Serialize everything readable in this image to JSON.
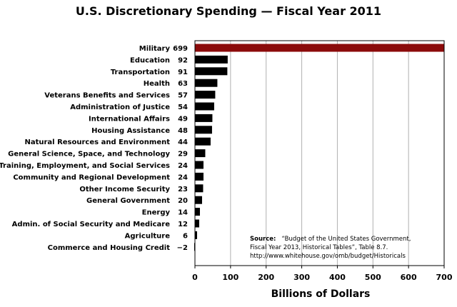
{
  "chart_data": {
    "type": "bar",
    "orientation": "horizontal",
    "title": "U.S. Discretionary Spending — Fiscal Year 2011",
    "xlabel": "Billions of Dollars",
    "ylabel": "",
    "xlim": [
      0,
      700
    ],
    "x_ticks": [
      "0",
      "100",
      "200",
      "300",
      "400",
      "500",
      "600",
      "700"
    ],
    "grid": "vertical gridlines",
    "categories": [
      "Military",
      "Education",
      "Transportation",
      "Health",
      "Veterans Benefits and Services",
      "Administration of Justice",
      "International Affairs",
      "Housing Assistance",
      "Natural Resources and Environment",
      "General Science, Space, and Technology",
      "Training, Employment, and Social Services",
      "Community and Regional Development",
      "Other Income Security",
      "General Government",
      "Energy",
      "Admin. of Social Security and Medicare",
      "Agriculture",
      "Commerce and Housing Credit"
    ],
    "values": [
      699,
      92,
      91,
      63,
      57,
      54,
      49,
      48,
      44,
      29,
      24,
      24,
      23,
      20,
      14,
      12,
      6,
      -2
    ],
    "value_labels": [
      "699",
      "92",
      "91",
      "63",
      "57",
      "54",
      "49",
      "48",
      "44",
      "29",
      "24",
      "24",
      "23",
      "20",
      "14",
      "12",
      "6",
      "−2"
    ],
    "colors": {
      "highlight": "#8b0a0a",
      "bar": "#000000",
      "grid": "#b0b0b0"
    },
    "source": {
      "label": "Source:",
      "line1": "“Budget of the United States Government,",
      "line2": "Fiscal Year 2013, Historical Tables”, Table 8.7.",
      "line3": "http://www.whitehouse.gov/omb/budget/Historicals"
    }
  }
}
